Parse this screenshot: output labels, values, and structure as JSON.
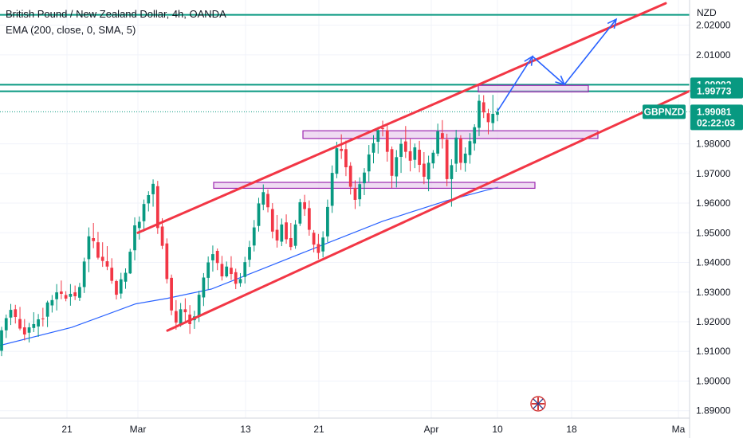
{
  "header": {
    "title": "British Pound / New Zealand Dollar, 4h, OANDA",
    "indicator": "EMA (200, close, 0, SMA, 5)"
  },
  "chart_data": {
    "type": "candlestick",
    "symbol": "GBPNZD",
    "currency": "NZD",
    "ylim": [
      1.8875,
      2.0285
    ],
    "y_ticks": [
      "2.02000",
      "2.01000",
      "1.98000",
      "1.97000",
      "1.96000",
      "1.95000",
      "1.94000",
      "1.93000",
      "1.92000",
      "1.91000",
      "1.90000",
      "1.89000"
    ],
    "x_ticks": [
      "21",
      "Mar",
      "13",
      "21",
      "Apr",
      "10",
      "18",
      "Ma"
    ],
    "price_tags": [
      {
        "label": "1.99992",
        "value": 1.99992,
        "color": "#089981"
      },
      {
        "label": "1.99773",
        "value": 1.99773,
        "color": "#089981"
      }
    ],
    "current_price": {
      "symbol": "GBPNZD",
      "price": "1.99081",
      "countdown": "02:22:03",
      "value": 1.99081,
      "color": "#089981"
    },
    "horizontal_lines": [
      {
        "value": 2.0235,
        "color": "#089981"
      },
      {
        "value": 1.99992,
        "color": "#089981"
      },
      {
        "value": 1.99773,
        "color": "#089981"
      }
    ],
    "candles": [
      [
        1.9102,
        1.9183,
        1.9084,
        1.9171
      ],
      [
        1.9171,
        1.9224,
        1.9145,
        1.9212
      ],
      [
        1.9214,
        1.926,
        1.9189,
        1.924
      ],
      [
        1.9242,
        1.9257,
        1.9194,
        1.9216
      ],
      [
        1.9209,
        1.925,
        1.9171,
        1.9177
      ],
      [
        1.9181,
        1.9209,
        1.9137,
        1.9157
      ],
      [
        1.9163,
        1.9196,
        1.913,
        1.9181
      ],
      [
        1.9179,
        1.9232,
        1.9165,
        1.9192
      ],
      [
        1.9184,
        1.9226,
        1.9149,
        1.9208
      ],
      [
        1.9211,
        1.9247,
        1.9184,
        1.9209
      ],
      [
        1.9217,
        1.9271,
        1.9182,
        1.9265
      ],
      [
        1.9255,
        1.929,
        1.9231,
        1.9273
      ],
      [
        1.9276,
        1.9327,
        1.9238,
        1.9299
      ],
      [
        1.9302,
        1.9339,
        1.9276,
        1.9294
      ],
      [
        1.929,
        1.9303,
        1.9269,
        1.9278
      ],
      [
        1.9284,
        1.9327,
        1.9254,
        1.9294
      ],
      [
        1.9299,
        1.9322,
        1.9273,
        1.9286
      ],
      [
        1.9281,
        1.9331,
        1.927,
        1.9317
      ],
      [
        1.9317,
        1.9416,
        1.9297,
        1.9403
      ],
      [
        1.9411,
        1.9518,
        1.9367,
        1.9488
      ],
      [
        1.9482,
        1.9533,
        1.9448,
        1.9472
      ],
      [
        1.9468,
        1.9503,
        1.941,
        1.9416
      ],
      [
        1.9419,
        1.9468,
        1.9385,
        1.9405
      ],
      [
        1.9404,
        1.9455,
        1.9374,
        1.9386
      ],
      [
        1.9382,
        1.9414,
        1.9328,
        1.9338
      ],
      [
        1.9337,
        1.9342,
        1.9275,
        1.9291
      ],
      [
        1.9295,
        1.9365,
        1.9278,
        1.9343
      ],
      [
        1.9335,
        1.938,
        1.9311,
        1.9365
      ],
      [
        1.9363,
        1.9446,
        1.9361,
        1.9436
      ],
      [
        1.9441,
        1.9552,
        1.9407,
        1.9525
      ],
      [
        1.9516,
        1.9555,
        1.9477,
        1.9537
      ],
      [
        1.9539,
        1.9612,
        1.9504,
        1.9597
      ],
      [
        1.9599,
        1.964,
        1.9572,
        1.9627
      ],
      [
        1.963,
        1.968,
        1.9588,
        1.9665
      ],
      [
        1.9657,
        1.9675,
        1.9496,
        1.9516
      ],
      [
        1.9521,
        1.9549,
        1.9445,
        1.9456
      ],
      [
        1.9464,
        1.9481,
        1.9329,
        1.9344
      ],
      [
        1.9348,
        1.9359,
        1.9222,
        1.9238
      ],
      [
        1.9236,
        1.9273,
        1.9173,
        1.9197
      ],
      [
        1.9188,
        1.9263,
        1.9183,
        1.9242
      ],
      [
        1.9242,
        1.9279,
        1.9202,
        1.9232
      ],
      [
        1.9224,
        1.9256,
        1.9159,
        1.9192
      ],
      [
        1.9205,
        1.9237,
        1.9176,
        1.9218
      ],
      [
        1.9219,
        1.9304,
        1.9199,
        1.9291
      ],
      [
        1.9282,
        1.9364,
        1.9253,
        1.9349
      ],
      [
        1.9348,
        1.942,
        1.9309,
        1.94
      ],
      [
        1.9407,
        1.9457,
        1.9369,
        1.9428
      ],
      [
        1.9439,
        1.9447,
        1.9374,
        1.9398
      ],
      [
        1.9395,
        1.9422,
        1.9339,
        1.9353
      ],
      [
        1.9353,
        1.9403,
        1.9349,
        1.9386
      ],
      [
        1.9382,
        1.9421,
        1.9341,
        1.9361
      ],
      [
        1.9367,
        1.9379,
        1.931,
        1.9328
      ],
      [
        1.933,
        1.9364,
        1.9318,
        1.9344
      ],
      [
        1.9351,
        1.9419,
        1.9329,
        1.9401
      ],
      [
        1.9409,
        1.9473,
        1.9385,
        1.9452
      ],
      [
        1.9457,
        1.9543,
        1.9437,
        1.9518
      ],
      [
        1.9523,
        1.9618,
        1.9504,
        1.9599
      ],
      [
        1.9595,
        1.9663,
        1.9576,
        1.9637
      ],
      [
        1.9631,
        1.9646,
        1.9569,
        1.9586
      ],
      [
        1.958,
        1.96,
        1.9481,
        1.9504
      ],
      [
        1.951,
        1.956,
        1.945,
        1.9474
      ],
      [
        1.947,
        1.9548,
        1.9455,
        1.9528
      ],
      [
        1.9535,
        1.9562,
        1.9463,
        1.9478
      ],
      [
        1.9482,
        1.9533,
        1.9441,
        1.9452
      ],
      [
        1.9456,
        1.9543,
        1.9446,
        1.9528
      ],
      [
        1.9531,
        1.9614,
        1.9523,
        1.9603
      ],
      [
        1.9603,
        1.9628,
        1.9557,
        1.958
      ],
      [
        1.9583,
        1.9609,
        1.949,
        1.951
      ],
      [
        1.95,
        1.9509,
        1.9434,
        1.946
      ],
      [
        1.9462,
        1.9496,
        1.9411,
        1.9432
      ],
      [
        1.9437,
        1.9505,
        1.9417,
        1.9484
      ],
      [
        1.9488,
        1.9612,
        1.9468,
        1.9587
      ],
      [
        1.9591,
        1.9727,
        1.9567,
        1.9702
      ],
      [
        1.9699,
        1.9807,
        1.9684,
        1.9785
      ],
      [
        1.9783,
        1.9832,
        1.9749,
        1.9776
      ],
      [
        1.9782,
        1.9811,
        1.9691,
        1.9721
      ],
      [
        1.9726,
        1.9738,
        1.9629,
        1.9655
      ],
      [
        1.9651,
        1.9677,
        1.958,
        1.9611
      ],
      [
        1.9613,
        1.9687,
        1.9589,
        1.9664
      ],
      [
        1.9667,
        1.9718,
        1.9627,
        1.9703
      ],
      [
        1.9707,
        1.9796,
        1.9672,
        1.9764
      ],
      [
        1.977,
        1.9829,
        1.9734,
        1.9802
      ],
      [
        1.9807,
        1.9857,
        1.9767,
        1.9846
      ],
      [
        1.9853,
        1.9878,
        1.9825,
        1.985
      ],
      [
        1.9846,
        1.9868,
        1.974,
        1.9773
      ],
      [
        1.9782,
        1.9791,
        1.9651,
        1.9692
      ],
      [
        1.969,
        1.9779,
        1.9653,
        1.9755
      ],
      [
        1.9756,
        1.9818,
        1.9702,
        1.98
      ],
      [
        1.9808,
        1.986,
        1.9752,
        1.9773
      ],
      [
        1.9775,
        1.9816,
        1.9707,
        1.9743
      ],
      [
        1.9746,
        1.9801,
        1.9718,
        1.9788
      ],
      [
        1.978,
        1.981,
        1.9704,
        1.9729
      ],
      [
        1.9733,
        1.9772,
        1.9664,
        1.9689
      ],
      [
        1.968,
        1.976,
        1.964,
        1.9736
      ],
      [
        1.9734,
        1.9779,
        1.9717,
        1.977
      ],
      [
        1.9767,
        1.9868,
        1.9758,
        1.9842
      ],
      [
        1.9836,
        1.988,
        1.9784,
        1.9816
      ],
      [
        1.9814,
        1.9834,
        1.9657,
        1.9681
      ],
      [
        1.9681,
        1.9748,
        1.9588,
        1.9728
      ],
      [
        1.9733,
        1.9847,
        1.9705,
        1.9821
      ],
      [
        1.9818,
        1.9829,
        1.9712,
        1.9736
      ],
      [
        1.9735,
        1.9788,
        1.9706,
        1.9767
      ],
      [
        1.9762,
        1.9836,
        1.9733,
        1.9809
      ],
      [
        1.9801,
        1.9866,
        1.9777,
        1.9856
      ],
      [
        1.9854,
        1.9966,
        1.9826,
        1.9945
      ],
      [
        1.994,
        1.9964,
        1.9887,
        1.9906
      ],
      [
        1.9903,
        1.9918,
        1.9832,
        1.9873
      ],
      [
        1.987,
        1.9965,
        1.9844,
        1.9901
      ],
      [
        1.9898,
        1.9921,
        1.9876,
        1.9908
      ]
    ],
    "ema": [
      [
        0,
        1.912
      ],
      [
        90,
        1.9181
      ],
      [
        170,
        1.926
      ],
      [
        210,
        1.9279
      ],
      [
        265,
        1.931
      ],
      [
        330,
        1.9379
      ],
      [
        400,
        1.9454
      ],
      [
        480,
        1.9539
      ],
      [
        560,
        1.9608
      ],
      [
        625,
        1.9654
      ]
    ],
    "channel": [
      {
        "from": [
          173,
          1.95
        ],
        "to": [
          835,
          2.0274
        ],
        "color": "#f23645"
      },
      {
        "from": [
          210,
          1.917
        ],
        "to": [
          865,
          1.9978
        ],
        "color": "#f23645"
      }
    ],
    "zones": [
      {
        "x1": 268,
        "x2": 671,
        "y1": 1.965,
        "y2": 1.967
      },
      {
        "x1": 380,
        "x2": 750,
        "y1": 1.9818,
        "y2": 1.9844
      },
      {
        "x1": 600,
        "x2": 738,
        "y1": 1.9975,
        "y2": 1.9997
      }
    ],
    "projection": [
      [
        624,
        1.991
      ],
      [
        668,
        2.0095
      ],
      [
        708,
        2.0
      ],
      [
        773,
        2.022
      ]
    ]
  }
}
